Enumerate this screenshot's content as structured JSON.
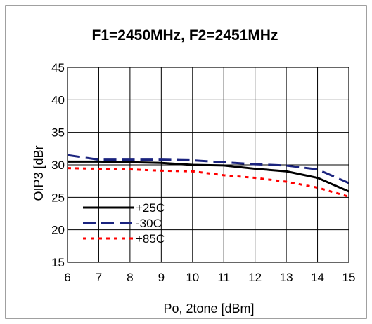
{
  "chart_data": {
    "type": "line",
    "title": "F1=2450MHz, F2=2451MHz",
    "xlabel": "Po, 2tone [dBm]",
    "ylabel": "OIP3 [dBr",
    "xlim": [
      6,
      15
    ],
    "ylim": [
      15,
      45
    ],
    "x_ticks": [
      "6",
      "7",
      "8",
      "9",
      "10",
      "11",
      "12",
      "13",
      "14",
      "15"
    ],
    "y_ticks": [
      "15",
      "20",
      "25",
      "30",
      "35",
      "40",
      "45"
    ],
    "grid": true,
    "legend_position": "bottom-left",
    "series": [
      {
        "name": "+25C",
        "color": "#000000",
        "style": "solid",
        "x": [
          6,
          7,
          8,
          9,
          10,
          11,
          12,
          13,
          14,
          15
        ],
        "y": [
          30.5,
          30.5,
          30.4,
          30.3,
          30.0,
          29.9,
          29.4,
          29.0,
          28.0,
          25.9
        ]
      },
      {
        "name": "-30C",
        "color": "#1a237e",
        "style": "dashed",
        "x": [
          6,
          7,
          8,
          9,
          10,
          11,
          12,
          13,
          14,
          15
        ],
        "y": [
          31.5,
          30.8,
          30.8,
          30.8,
          30.7,
          30.4,
          30.1,
          29.9,
          29.3,
          27.2
        ]
      },
      {
        "name": "+85C",
        "color": "#ff0000",
        "style": "dotted",
        "x": [
          6,
          7,
          8,
          9,
          10,
          11,
          12,
          13,
          14,
          15
        ],
        "y": [
          29.5,
          29.4,
          29.3,
          29.1,
          29.0,
          28.4,
          28.0,
          27.4,
          26.5,
          25.1
        ]
      }
    ]
  }
}
